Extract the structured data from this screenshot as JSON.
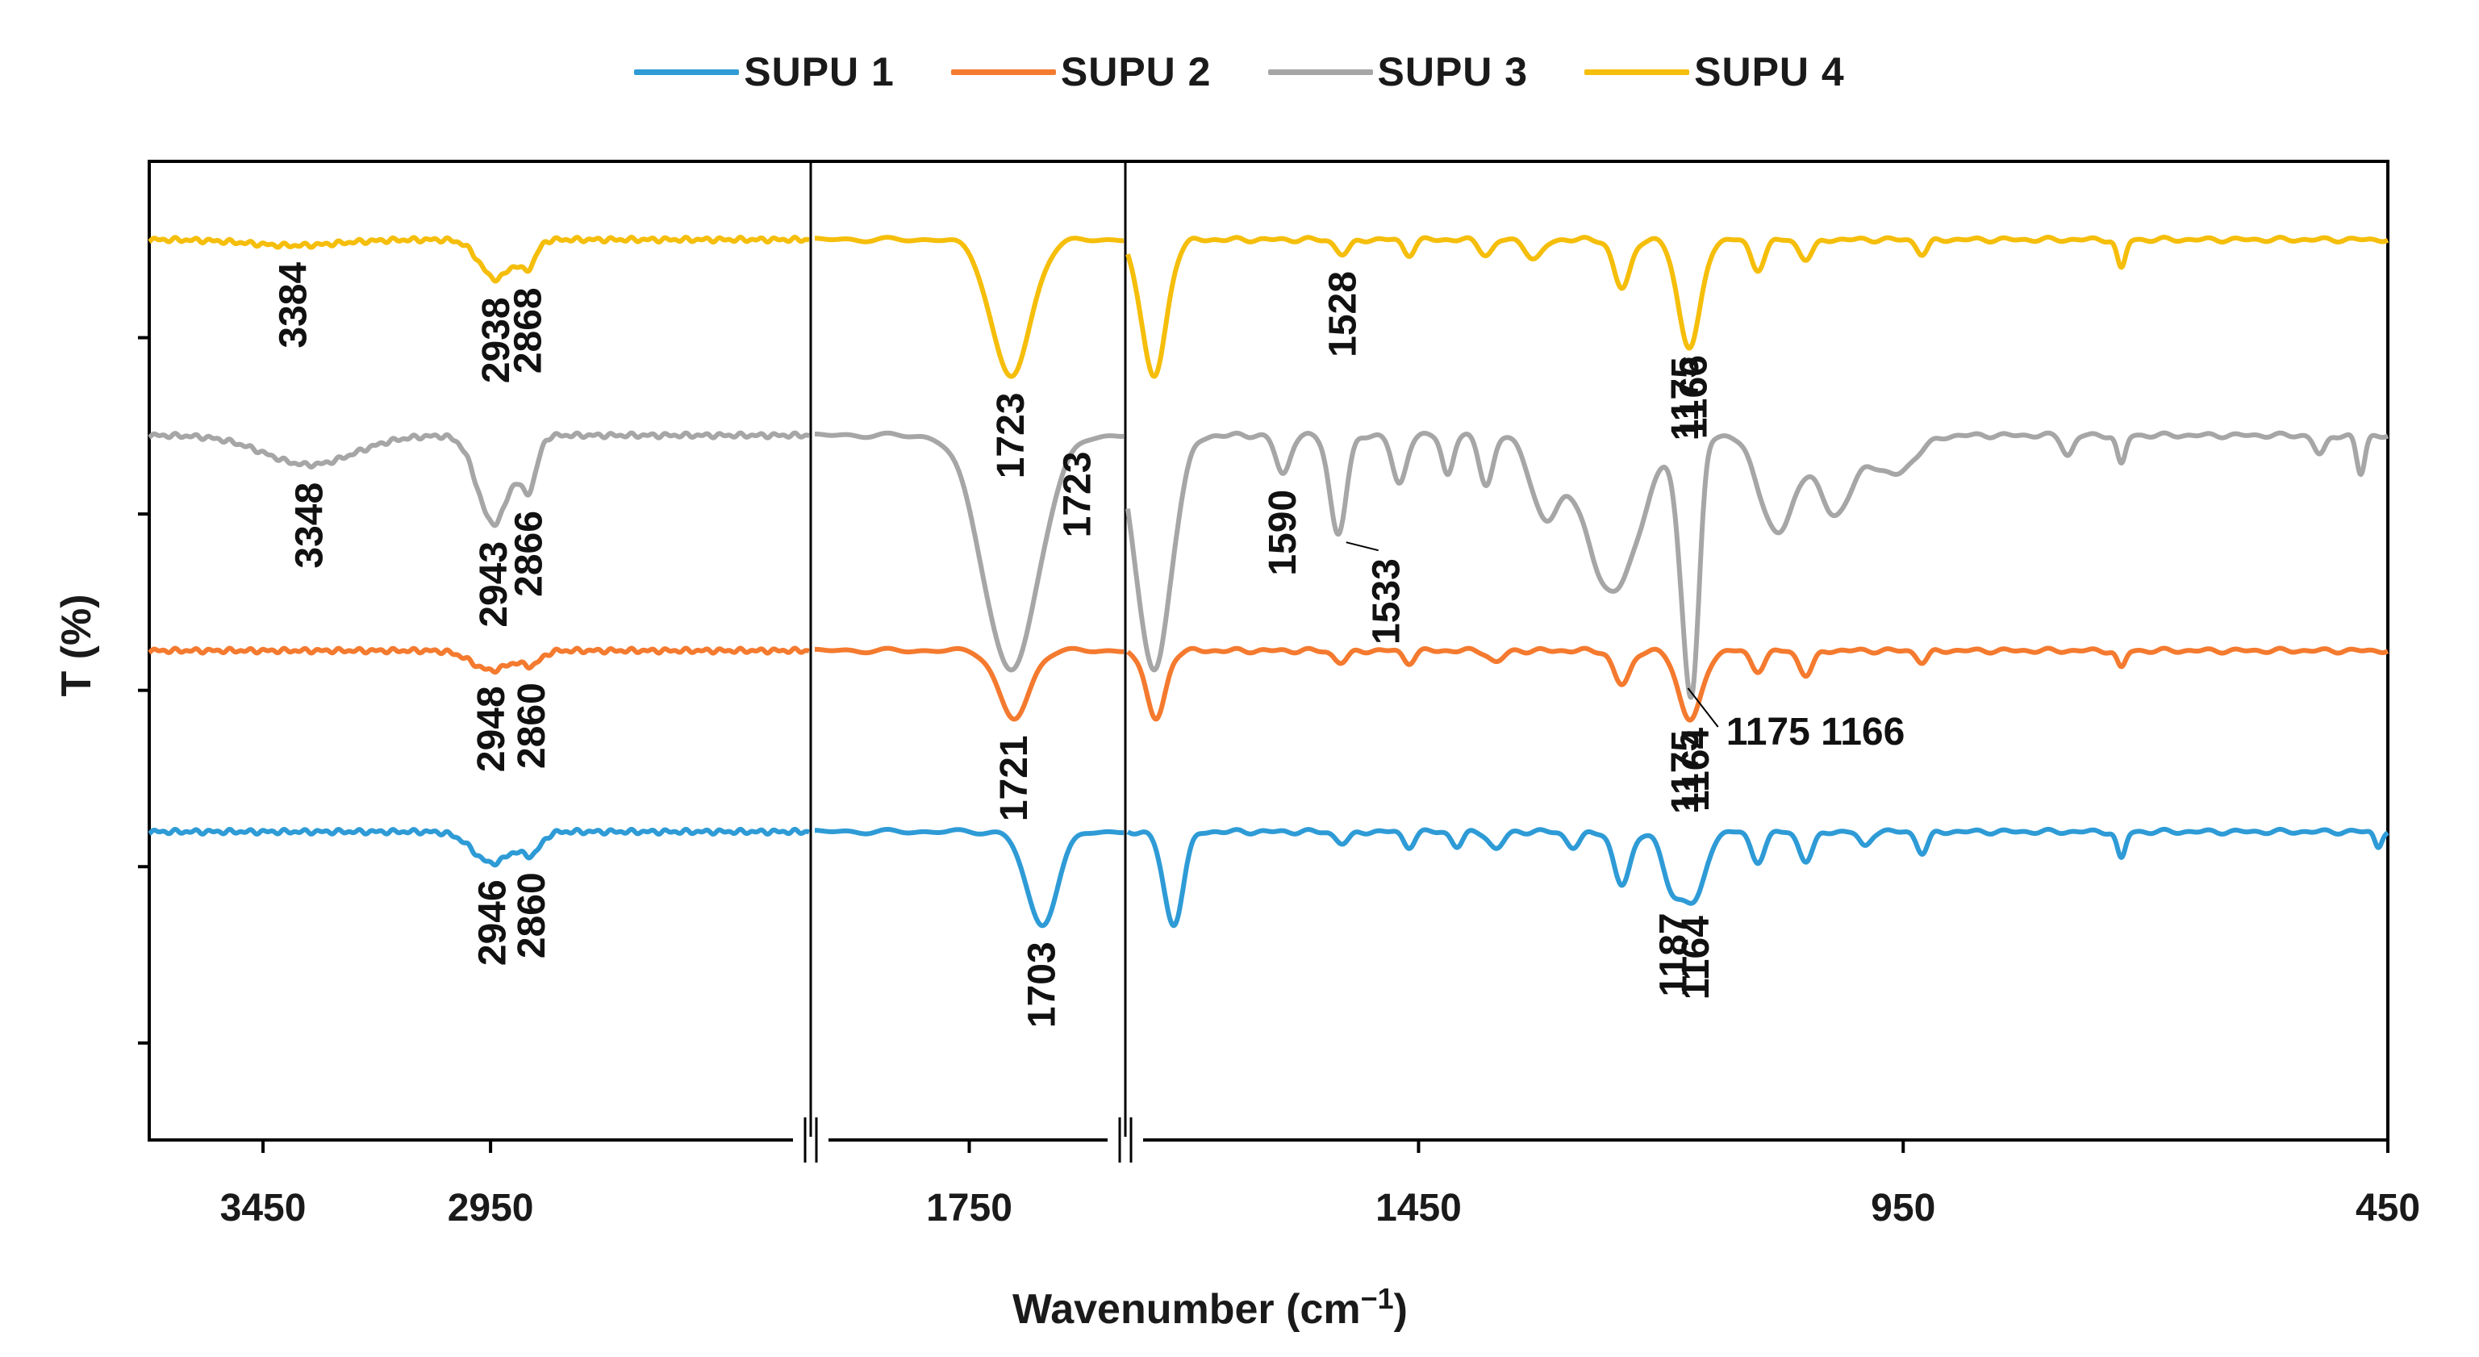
{
  "chart_data": {
    "type": "line",
    "title": "",
    "xlabel": "Wavenumber (cm",
    "xlabel_sup": "−1",
    "xlabel_close": ")",
    "ylabel": "T (%)",
    "grid": false,
    "legend_position": "top-center",
    "x_reversed": true,
    "axis_break": true,
    "segments": [
      {
        "range": [
          3700,
          2250
        ],
        "ticks": [
          3450,
          2950
        ]
      },
      {
        "range": [
          1850,
          1650
        ],
        "ticks": [
          1750
        ]
      },
      {
        "range": [
          1750,
          450
        ],
        "ticks": [
          1450,
          950,
          450
        ]
      }
    ],
    "tick_labels": [
      "3450",
      "2950",
      "1750",
      "1450",
      "950",
      "450"
    ],
    "series": [
      {
        "name": "SUPU 1",
        "color": "#2E9BD6",
        "baseline": 31.5,
        "peaks": [
          {
            "x": 2946,
            "depth": 3.2,
            "width": 60
          },
          {
            "x": 2860,
            "depth": 2.0,
            "width": 30
          },
          {
            "x": 1703,
            "depth": 9.5,
            "width": 14
          },
          {
            "x": 1528,
            "depth": 1.2,
            "width": 10
          },
          {
            "x": 1460,
            "depth": 1.5,
            "width": 8
          },
          {
            "x": 1410,
            "depth": 1.5,
            "width": 8
          },
          {
            "x": 1370,
            "depth": 1.8,
            "width": 10
          },
          {
            "x": 1290,
            "depth": 1.6,
            "width": 10
          },
          {
            "x": 1240,
            "depth": 5.5,
            "width": 12
          },
          {
            "x": 1187,
            "depth": 6.0,
            "width": 15
          },
          {
            "x": 1164,
            "depth": 6.5,
            "width": 15
          },
          {
            "x": 1100,
            "depth": 3.0,
            "width": 10
          },
          {
            "x": 1050,
            "depth": 3.0,
            "width": 10
          },
          {
            "x": 990,
            "depth": 1.5,
            "width": 8
          },
          {
            "x": 930,
            "depth": 2.2,
            "width": 8
          },
          {
            "x": 725,
            "depth": 2.8,
            "width": 6
          },
          {
            "x": 460,
            "depth": 1.5,
            "width": 5
          }
        ]
      },
      {
        "name": "SUPU 2",
        "color": "#F47A2F",
        "baseline": 50.0,
        "peaks": [
          {
            "x": 2948,
            "depth": 2.0,
            "width": 60
          },
          {
            "x": 2860,
            "depth": 1.3,
            "width": 30
          },
          {
            "x": 1721,
            "depth": 7.0,
            "width": 14
          },
          {
            "x": 1530,
            "depth": 1.2,
            "width": 10
          },
          {
            "x": 1460,
            "depth": 1.2,
            "width": 8
          },
          {
            "x": 1370,
            "depth": 1.2,
            "width": 10
          },
          {
            "x": 1240,
            "depth": 3.5,
            "width": 12
          },
          {
            "x": 1175,
            "depth": 4.0,
            "width": 15
          },
          {
            "x": 1164,
            "depth": 4.0,
            "width": 15
          },
          {
            "x": 1100,
            "depth": 2.0,
            "width": 10
          },
          {
            "x": 1050,
            "depth": 2.5,
            "width": 10
          },
          {
            "x": 930,
            "depth": 1.2,
            "width": 8
          },
          {
            "x": 725,
            "depth": 1.8,
            "width": 6
          }
        ]
      },
      {
        "name": "SUPU 3",
        "color": "#A6A6A6",
        "baseline": 72.0,
        "peaks": [
          {
            "x": 3348,
            "depth": 3.0,
            "width": 140
          },
          {
            "x": 2943,
            "depth": 9.0,
            "width": 50
          },
          {
            "x": 2866,
            "depth": 5.0,
            "width": 25
          },
          {
            "x": 1723,
            "depth": 24.0,
            "width": 25
          },
          {
            "x": 1590,
            "depth": 4.0,
            "width": 10
          },
          {
            "x": 1533,
            "depth": 10.0,
            "width": 12
          },
          {
            "x": 1470,
            "depth": 5.0,
            "width": 10
          },
          {
            "x": 1420,
            "depth": 4.0,
            "width": 8
          },
          {
            "x": 1380,
            "depth": 5.0,
            "width": 10
          },
          {
            "x": 1320,
            "depth": 8.0,
            "width": 20
          },
          {
            "x": 1250,
            "depth": 16.0,
            "width": 40
          },
          {
            "x": 1175,
            "depth": 14.0,
            "width": 12
          },
          {
            "x": 1166,
            "depth": 17.0,
            "width": 10
          },
          {
            "x": 1080,
            "depth": 10.0,
            "width": 25
          },
          {
            "x": 1020,
            "depth": 8.0,
            "width": 25
          },
          {
            "x": 960,
            "depth": 4.0,
            "width": 30
          },
          {
            "x": 780,
            "depth": 2.0,
            "width": 8
          },
          {
            "x": 725,
            "depth": 3.0,
            "width": 6
          },
          {
            "x": 520,
            "depth": 2.0,
            "width": 8
          },
          {
            "x": 478,
            "depth": 4.0,
            "width": 6
          }
        ]
      },
      {
        "name": "SUPU 4",
        "color": "#F5BE0B",
        "baseline": 92.0,
        "peaks": [
          {
            "x": 3384,
            "depth": 0.6,
            "width": 140
          },
          {
            "x": 2938,
            "depth": 4.0,
            "width": 50
          },
          {
            "x": 2868,
            "depth": 2.5,
            "width": 25
          },
          {
            "x": 1723,
            "depth": 14.0,
            "width": 18
          },
          {
            "x": 1528,
            "depth": 1.5,
            "width": 10
          },
          {
            "x": 1460,
            "depth": 1.5,
            "width": 8
          },
          {
            "x": 1380,
            "depth": 1.5,
            "width": 10
          },
          {
            "x": 1330,
            "depth": 2.0,
            "width": 12
          },
          {
            "x": 1240,
            "depth": 5.0,
            "width": 12
          },
          {
            "x": 1175,
            "depth": 6.0,
            "width": 15
          },
          {
            "x": 1166,
            "depth": 6.0,
            "width": 15
          },
          {
            "x": 1100,
            "depth": 3.0,
            "width": 10
          },
          {
            "x": 1050,
            "depth": 2.0,
            "width": 10
          },
          {
            "x": 930,
            "depth": 1.5,
            "width": 8
          },
          {
            "x": 725,
            "depth": 3.0,
            "width": 6
          }
        ]
      }
    ],
    "annotations": [
      {
        "text": "3384",
        "series": "SUPU 4",
        "x": 3384
      },
      {
        "text": "2938",
        "series": "SUPU 4",
        "x": 2938
      },
      {
        "text": "2868",
        "series": "SUPU 4",
        "x": 2868
      },
      {
        "text": "1723",
        "series": "SUPU 4",
        "x": 1723
      },
      {
        "text": "1528",
        "series": "SUPU 4",
        "x": 1528
      },
      {
        "text": "1175",
        "series": "SUPU 4",
        "x": 1175
      },
      {
        "text": "1166",
        "series": "SUPU 4",
        "x": 1166
      },
      {
        "text": "3348",
        "series": "SUPU 3",
        "x": 3348
      },
      {
        "text": "2943",
        "series": "SUPU 3",
        "x": 2943
      },
      {
        "text": "2866",
        "series": "SUPU 3",
        "x": 2866
      },
      {
        "text": "1723",
        "series": "SUPU 3",
        "x": 1723
      },
      {
        "text": "1590",
        "series": "SUPU 3",
        "x": 1590
      },
      {
        "text": "1533",
        "series": "SUPU 3",
        "x": 1533
      },
      {
        "text": "1175 1166",
        "series": "SUPU 3",
        "x": 1170
      },
      {
        "text": "2948",
        "series": "SUPU 2",
        "x": 2948
      },
      {
        "text": "2860",
        "series": "SUPU 2",
        "x": 2860
      },
      {
        "text": "1721",
        "series": "SUPU 2",
        "x": 1721
      },
      {
        "text": "1175",
        "series": "SUPU 2",
        "x": 1175
      },
      {
        "text": "1164",
        "series": "SUPU 2",
        "x": 1164
      },
      {
        "text": "2946",
        "series": "SUPU 1",
        "x": 2946
      },
      {
        "text": "2860",
        "series": "SUPU 1",
        "x": 2860
      },
      {
        "text": "1703",
        "series": "SUPU 1",
        "x": 1703
      },
      {
        "text": "1187",
        "series": "SUPU 1",
        "x": 1187
      },
      {
        "text": "1164",
        "series": "SUPU 1",
        "x": 1164
      }
    ]
  }
}
